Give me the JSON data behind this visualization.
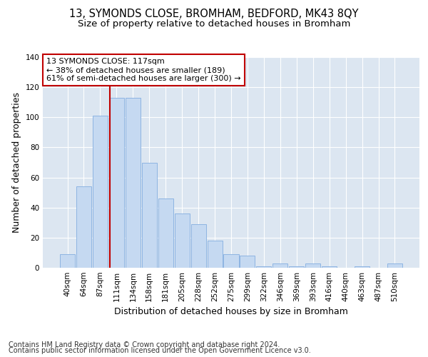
{
  "title1": "13, SYMONDS CLOSE, BROMHAM, BEDFORD, MK43 8QY",
  "title2": "Size of property relative to detached houses in Bromham",
  "xlabel": "Distribution of detached houses by size in Bromham",
  "ylabel": "Number of detached properties",
  "bar_labels": [
    "40sqm",
    "64sqm",
    "87sqm",
    "111sqm",
    "134sqm",
    "158sqm",
    "181sqm",
    "205sqm",
    "228sqm",
    "252sqm",
    "275sqm",
    "299sqm",
    "322sqm",
    "346sqm",
    "369sqm",
    "393sqm",
    "416sqm",
    "440sqm",
    "463sqm",
    "487sqm",
    "510sqm"
  ],
  "bar_values": [
    9,
    54,
    101,
    113,
    113,
    70,
    46,
    36,
    29,
    18,
    9,
    8,
    1,
    3,
    1,
    3,
    1,
    0,
    1,
    0,
    3
  ],
  "bar_color": "#c5d9f1",
  "bar_edge_color": "#8db4e2",
  "vline_color": "#c00000",
  "annotation_title": "13 SYMONDS CLOSE: 117sqm",
  "annotation_line1": "← 38% of detached houses are smaller (189)",
  "annotation_line2": "61% of semi-detached houses are larger (300) →",
  "box_edge_color": "#c00000",
  "ylim": [
    0,
    140
  ],
  "yticks": [
    0,
    20,
    40,
    60,
    80,
    100,
    120,
    140
  ],
  "footer1": "Contains HM Land Registry data © Crown copyright and database right 2024.",
  "footer2": "Contains public sector information licensed under the Open Government Licence v3.0.",
  "bg_color": "#dce6f1",
  "grid_color": "#ffffff",
  "title_fontsize": 10.5,
  "subtitle_fontsize": 9.5,
  "axis_label_fontsize": 9,
  "tick_fontsize": 7.5,
  "footer_fontsize": 7,
  "annotation_fontsize": 8
}
